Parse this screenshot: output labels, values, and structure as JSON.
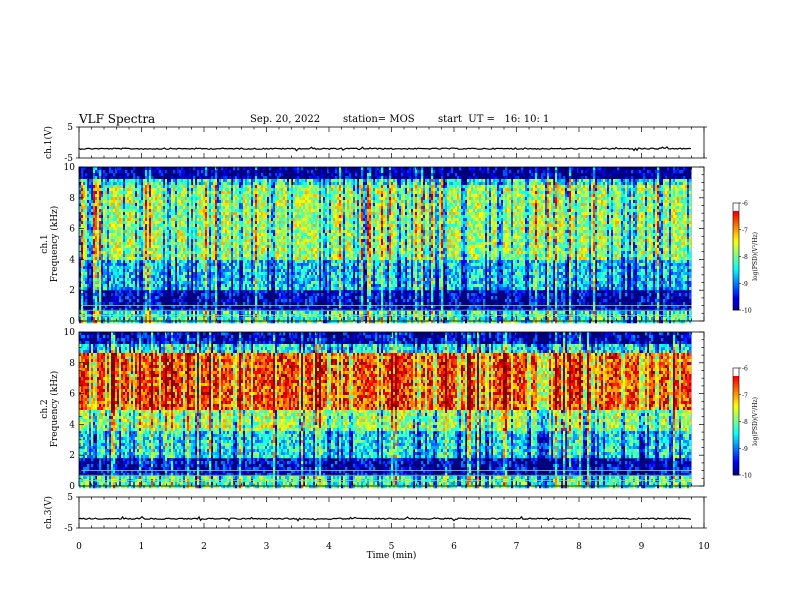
{
  "header": {
    "title": "VLF Spectra",
    "date": "Sep. 20, 2022",
    "station": "station= MOS",
    "start_ut": "start  UT =   16: 10: 1"
  },
  "chart_data": [
    {
      "type": "line",
      "name": "ch1-waveform",
      "ylabel": "ch.1(V)",
      "ylim": [
        -5,
        5
      ],
      "yticks": [
        "5",
        "-5"
      ],
      "xlim": [
        0,
        10
      ],
      "baseline": -2
    },
    {
      "type": "heatmap",
      "name": "ch1-spectrogram",
      "ylabel": "ch.1 Frequency (kHz)",
      "ylim": [
        0,
        10
      ],
      "yticks": [
        "0",
        "2",
        "4",
        "6",
        "8",
        "10"
      ],
      "xlim": [
        0,
        10
      ],
      "data_end_min": 9.8,
      "colorbar": {
        "label": "log(PSD)(V²/Hz)",
        "range": [
          -10,
          -6
        ],
        "ticks": [
          "-6",
          "-7",
          "-8",
          "-9",
          "-10"
        ]
      }
    },
    {
      "type": "heatmap",
      "name": "ch2-spectrogram",
      "ylabel": "ch.2 Frequency (kHz)",
      "ylim": [
        0,
        10
      ],
      "yticks": [
        "0",
        "2",
        "4",
        "6",
        "8",
        "10"
      ],
      "xlim": [
        0,
        10
      ],
      "data_end_min": 9.8,
      "colorbar": {
        "label": "log(PSD)(V²/Hz)",
        "range": [
          -10,
          -6
        ],
        "ticks": [
          "-6",
          "-7",
          "-8",
          "-9",
          "-10"
        ]
      }
    },
    {
      "type": "line",
      "name": "ch3-waveform",
      "ylabel": "ch.3(V)",
      "ylim": [
        -5,
        5
      ],
      "yticks": [
        "5",
        "-5"
      ],
      "xlim": [
        0,
        10
      ],
      "baseline": -2
    }
  ],
  "xaxis": {
    "label": "Time  (min)",
    "ticks": [
      "0",
      "1",
      "2",
      "3",
      "4",
      "5",
      "6",
      "7",
      "8",
      "9",
      "10"
    ]
  }
}
